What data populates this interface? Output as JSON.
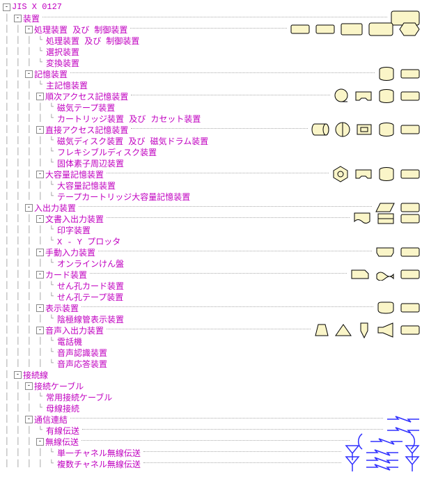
{
  "colors": {
    "fill": "#faf5c8",
    "stroke": "#000",
    "line": "#3030ff",
    "text": "#c000c0"
  },
  "tree": [
    {
      "d": 0,
      "b": "-",
      "t": "JIS X 0127",
      "i": []
    },
    {
      "d": 1,
      "b": "-",
      "t": "装置",
      "i": [
        "r4"
      ]
    },
    {
      "d": 2,
      "b": "-",
      "t": "処理装置 及び 制御装置",
      "i": [
        "r1",
        "r1",
        "r2",
        "r3",
        "hex"
      ]
    },
    {
      "d": 3,
      "b": "",
      "t": "処理装置 及び 制御装置",
      "i": []
    },
    {
      "d": 3,
      "b": "",
      "t": "選択装置",
      "i": []
    },
    {
      "d": 3,
      "b": "",
      "t": "変換装置",
      "i": []
    },
    {
      "d": 2,
      "b": "-",
      "t": "記憶装置",
      "i": [
        "cyl",
        "r1"
      ]
    },
    {
      "d": 3,
      "b": "",
      "t": "主記憶装置",
      "i": []
    },
    {
      "d": 3,
      "b": "-",
      "t": "順次アクセス記憶装置",
      "i": [
        "circ",
        "cass",
        "cyl",
        "r1"
      ]
    },
    {
      "d": 4,
      "b": "",
      "t": "磁気テープ装置",
      "i": []
    },
    {
      "d": 4,
      "b": "",
      "t": "カートリッジ装置 及び カセット装置",
      "i": []
    },
    {
      "d": 3,
      "b": "-",
      "t": "直接アクセス記憶装置",
      "i": [
        "drum",
        "fdisk",
        "chip",
        "cyl",
        "r1"
      ]
    },
    {
      "d": 4,
      "b": "",
      "t": "磁気ディスク装置 及び 磁気ドラム装置",
      "i": []
    },
    {
      "d": 4,
      "b": "",
      "t": "フレキシブルディスク装置",
      "i": []
    },
    {
      "d": 4,
      "b": "",
      "t": "固体素子周辺装置",
      "i": []
    },
    {
      "d": 3,
      "b": "-",
      "t": "大容量記憶装置",
      "i": [
        "hexo",
        "cass",
        "cyl",
        "r1"
      ]
    },
    {
      "d": 4,
      "b": "",
      "t": "大容量記憶装置",
      "i": []
    },
    {
      "d": 4,
      "b": "",
      "t": "テープカートリッジ大容量記憶装置",
      "i": []
    },
    {
      "d": 2,
      "b": "-",
      "t": "入出力装置",
      "i": [
        "para",
        "r1"
      ]
    },
    {
      "d": 3,
      "b": "-",
      "t": "文書入出力装置",
      "i": [
        "doc",
        "plot",
        "r1"
      ]
    },
    {
      "d": 4,
      "b": "",
      "t": "印字装置",
      "i": []
    },
    {
      "d": 4,
      "b": "",
      "t": "X - Y プロッタ",
      "i": []
    },
    {
      "d": 3,
      "b": "-",
      "t": "手動入力装置",
      "i": [
        "kb",
        "r1"
      ]
    },
    {
      "d": 4,
      "b": "",
      "t": "オンラインけん盤",
      "i": []
    },
    {
      "d": 3,
      "b": "-",
      "t": "カード装置",
      "i": [
        "card",
        "tape",
        "r1"
      ]
    },
    {
      "d": 4,
      "b": "",
      "t": "せん孔カード装置",
      "i": []
    },
    {
      "d": 4,
      "b": "",
      "t": "せん孔テープ装置",
      "i": []
    },
    {
      "d": 3,
      "b": "-",
      "t": "表示装置",
      "i": [
        "crt",
        "r1"
      ]
    },
    {
      "d": 4,
      "b": "",
      "t": "陰極線管表示装置",
      "i": []
    },
    {
      "d": 3,
      "b": "-",
      "t": "音声入出力装置",
      "i": [
        "trap",
        "tri",
        "mic",
        "spk",
        "r1"
      ]
    },
    {
      "d": 4,
      "b": "",
      "t": "電話機",
      "i": []
    },
    {
      "d": 4,
      "b": "",
      "t": "音声認識装置",
      "i": []
    },
    {
      "d": 4,
      "b": "",
      "t": "音声応答装置",
      "i": []
    },
    {
      "d": 1,
      "b": "-",
      "t": "接続線",
      "i": []
    },
    {
      "d": 2,
      "b": "-",
      "t": "接続ケーブル",
      "i": []
    },
    {
      "d": 3,
      "b": "",
      "t": "常用接続ケーブル",
      "i": []
    },
    {
      "d": 3,
      "b": "",
      "t": "母線接続",
      "i": []
    },
    {
      "d": 2,
      "b": "-",
      "t": "通信連結",
      "i": [
        "zig"
      ]
    },
    {
      "d": 3,
      "b": "",
      "t": "有線伝送",
      "i": [
        "zig"
      ]
    },
    {
      "d": 3,
      "b": "-",
      "t": "無線伝送",
      "i": [
        "arc",
        "zig",
        "arc2"
      ]
    },
    {
      "d": 4,
      "b": "",
      "t": "単一チャネル無線伝送",
      "i": [
        "ant",
        "zig",
        "ant"
      ]
    },
    {
      "d": 4,
      "b": "",
      "t": "複数チャネル無線伝送",
      "i": [
        "ant",
        "zig2",
        "ant"
      ]
    }
  ]
}
